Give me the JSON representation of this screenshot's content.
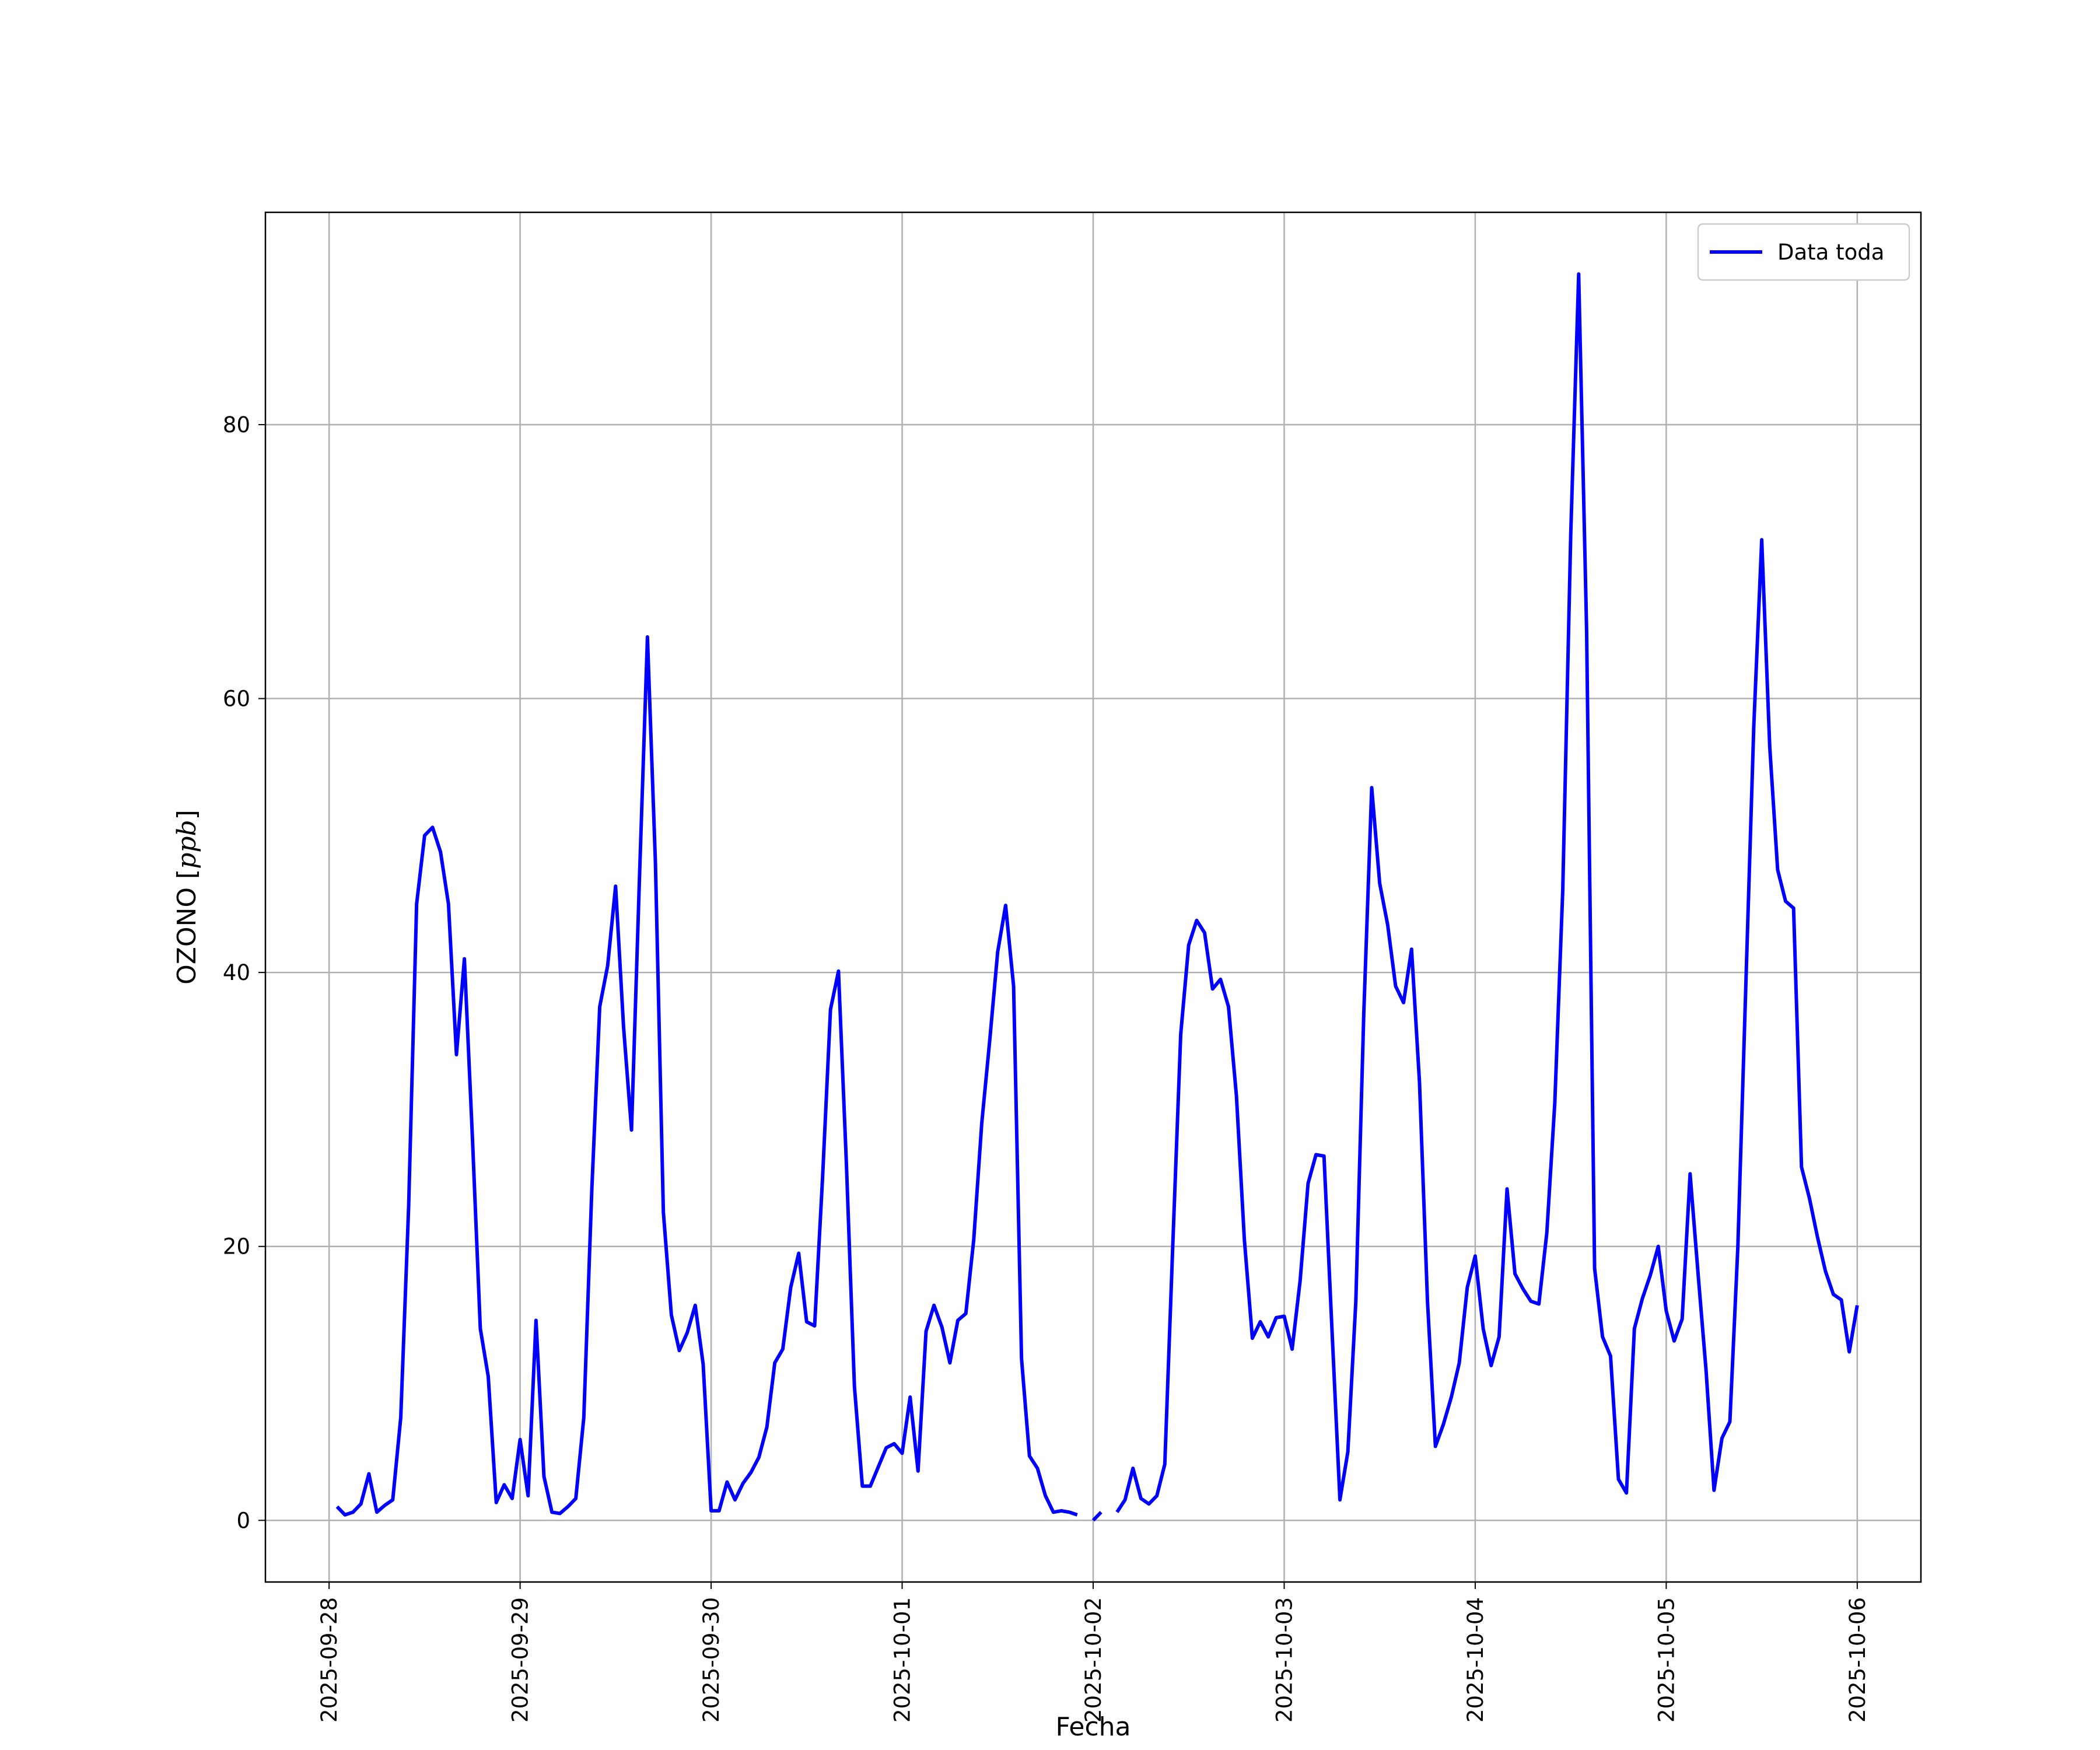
{
  "chart_data": {
    "type": "line",
    "title": "",
    "xlabel": "Fecha",
    "ylabel": "OZONO [ppb]",
    "ylabel_italic_part": "ppb",
    "xlim": [
      "2025-09-27T16:00",
      "2025-10-06T08:00"
    ],
    "ylim": [
      -4.5,
      95.5
    ],
    "grid": true,
    "legend": "top-right",
    "x_ticks": [
      "2025-09-28",
      "2025-09-29",
      "2025-09-30",
      "2025-10-01",
      "2025-10-02",
      "2025-10-03",
      "2025-10-04",
      "2025-10-05",
      "2025-10-06"
    ],
    "y_ticks": [
      0,
      20,
      40,
      60,
      80
    ],
    "x_tick_rotation": 90,
    "series": [
      {
        "name": "Data toda",
        "color": "#0000ff",
        "start": "2025-09-28T01:00",
        "step_hours": 1,
        "values": [
          1.0,
          0.4,
          0.6,
          1.2,
          3.4,
          0.6,
          1.1,
          1.5,
          7.5,
          23.0,
          45.0,
          50.0,
          50.6,
          48.8,
          45.0,
          34.0,
          41.0,
          28.0,
          14.0,
          10.5,
          1.3,
          2.6,
          1.6,
          5.9,
          1.8,
          14.6,
          3.2,
          0.6,
          0.5,
          1.0,
          1.6,
          7.5,
          24.0,
          37.5,
          40.5,
          46.3,
          36.0,
          28.5,
          47.0,
          64.5,
          48.0,
          22.5,
          15.0,
          12.4,
          13.7,
          15.7,
          11.4,
          0.7,
          0.7,
          2.8,
          1.5,
          2.7,
          3.5,
          4.6,
          6.8,
          11.5,
          12.5,
          17.0,
          19.5,
          14.5,
          14.2,
          25.0,
          37.3,
          40.1,
          26.0,
          9.8,
          2.5,
          2.5,
          3.9,
          5.3,
          5.6,
          4.9,
          9.0,
          3.6,
          13.8,
          15.7,
          14.1,
          11.5,
          14.6,
          15.1,
          20.5,
          29.0,
          35.0,
          41.5,
          44.9,
          39.0,
          11.8,
          4.7,
          3.8,
          1.8,
          0.6,
          0.7,
          0.6,
          0.4,
          null,
          0.0,
          0.6,
          null,
          0.6,
          1.5,
          3.8,
          1.6,
          1.2,
          1.8,
          4.1,
          20.0,
          35.5,
          42.0,
          43.8,
          42.9,
          38.8,
          39.5,
          37.5,
          31.0,
          20.5,
          13.3,
          14.5,
          13.4,
          14.8,
          14.9,
          12.5,
          17.5,
          24.6,
          26.7,
          26.6,
          14.0,
          1.5,
          5.0,
          16.0,
          37.0,
          53.5,
          46.5,
          43.5,
          39.0,
          37.8,
          41.7,
          32.0,
          16.0,
          5.4,
          7.0,
          9.0,
          11.5,
          17.0,
          19.3,
          14.0,
          11.3,
          13.4,
          24.2,
          18.0,
          16.9,
          16.0,
          15.8,
          21.0,
          30.5,
          46.0,
          72.0,
          91.0,
          65.0,
          18.4,
          13.4,
          12.0,
          3.0,
          2.0,
          14.0,
          16.2,
          17.9,
          20.0,
          15.3,
          13.1,
          14.7,
          25.3,
          18.0,
          11.0,
          2.2,
          6.0,
          7.2,
          20.0,
          39.0,
          58.0,
          71.6,
          56.5,
          47.5,
          45.2,
          44.7,
          25.8,
          23.5,
          20.7,
          18.2,
          16.5,
          16.1,
          12.3,
          15.7
        ]
      }
    ]
  }
}
